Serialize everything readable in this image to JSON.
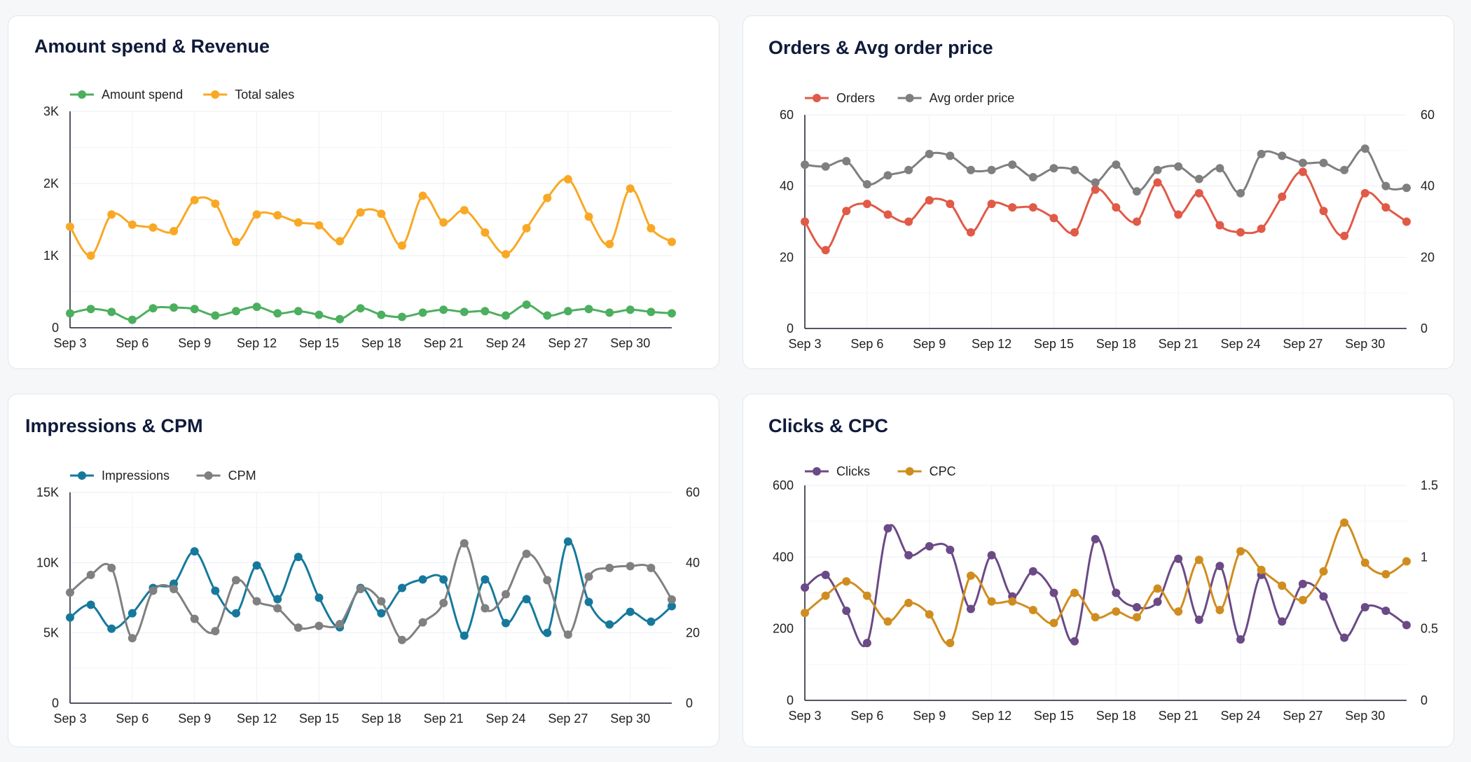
{
  "chart_data": [
    {
      "type": "line",
      "title": "Amount spend & Revenue",
      "categories": [
        "Sep 3",
        "Sep 4",
        "Sep 5",
        "Sep 6",
        "Sep 7",
        "Sep 8",
        "Sep 9",
        "Sep 10",
        "Sep 11",
        "Sep 12",
        "Sep 13",
        "Sep 14",
        "Sep 15",
        "Sep 16",
        "Sep 17",
        "Sep 18",
        "Sep 19",
        "Sep 20",
        "Sep 21",
        "Sep 22",
        "Sep 23",
        "Sep 24",
        "Sep 25",
        "Sep 26",
        "Sep 27",
        "Sep 28",
        "Sep 29",
        "Sep 30",
        "Oct 1",
        "Oct 2"
      ],
      "xtick_labels": [
        "Sep 3",
        "Sep 6",
        "Sep 9",
        "Sep 12",
        "Sep 15",
        "Sep 18",
        "Sep 21",
        "Sep 24",
        "Sep 27",
        "Sep 30"
      ],
      "y_left": {
        "min": 0,
        "max": 3000,
        "ticks": [
          0,
          1000,
          2000,
          3000
        ],
        "tick_labels": [
          "0",
          "1K",
          "2K",
          "3K"
        ]
      },
      "series": [
        {
          "name": "Amount spend",
          "color": "#4caf5f",
          "axis": "left",
          "values": [
            200,
            260,
            220,
            110,
            270,
            280,
            260,
            170,
            230,
            290,
            200,
            230,
            180,
            120,
            270,
            180,
            150,
            210,
            250,
            220,
            230,
            170,
            320,
            170,
            230,
            260,
            210,
            250,
            220,
            200
          ]
        },
        {
          "name": "Total sales",
          "color": "#f9a825",
          "axis": "left",
          "values": [
            1400,
            1000,
            1570,
            1430,
            1390,
            1340,
            1770,
            1720,
            1190,
            1570,
            1560,
            1460,
            1420,
            1200,
            1600,
            1580,
            1140,
            1830,
            1460,
            1630,
            1320,
            1020,
            1380,
            1800,
            2060,
            1540,
            1160,
            1930,
            1380,
            1190
          ]
        }
      ],
      "legend_position": "top-left",
      "grid": true
    },
    {
      "type": "line",
      "title": "Orders & Avg order price",
      "categories": [
        "Sep 3",
        "Sep 4",
        "Sep 5",
        "Sep 6",
        "Sep 7",
        "Sep 8",
        "Sep 9",
        "Sep 10",
        "Sep 11",
        "Sep 12",
        "Sep 13",
        "Sep 14",
        "Sep 15",
        "Sep 16",
        "Sep 17",
        "Sep 18",
        "Sep 19",
        "Sep 20",
        "Sep 21",
        "Sep 22",
        "Sep 23",
        "Sep 24",
        "Sep 25",
        "Sep 26",
        "Sep 27",
        "Sep 28",
        "Sep 29",
        "Sep 30",
        "Oct 1",
        "Oct 2"
      ],
      "xtick_labels": [
        "Sep 3",
        "Sep 6",
        "Sep 9",
        "Sep 12",
        "Sep 15",
        "Sep 18",
        "Sep 21",
        "Sep 24",
        "Sep 27",
        "Sep 30"
      ],
      "y_left": {
        "min": 0,
        "max": 60,
        "ticks": [
          0,
          20,
          40,
          60
        ],
        "tick_labels": [
          "0",
          "20",
          "40",
          "60"
        ]
      },
      "y_right": {
        "min": 0,
        "max": 60,
        "ticks": [
          0,
          20,
          40,
          60
        ],
        "tick_labels": [
          "0",
          "20",
          "40",
          "60"
        ]
      },
      "series": [
        {
          "name": "Orders",
          "color": "#e05a47",
          "axis": "left",
          "values": [
            30,
            22,
            33,
            35,
            32,
            30,
            36,
            35,
            27,
            35,
            34,
            34,
            31,
            27,
            39,
            34,
            30,
            41,
            32,
            38,
            29,
            27,
            28,
            37,
            44,
            33,
            26,
            38,
            34,
            30
          ]
        },
        {
          "name": "Avg order price",
          "color": "#7f7f7f",
          "axis": "right",
          "values": [
            46,
            45.5,
            47,
            40.5,
            43,
            44.5,
            49,
            48.5,
            44.5,
            44.5,
            46,
            42.5,
            45,
            44.5,
            41,
            46,
            38.5,
            44.5,
            45.5,
            42,
            45,
            38,
            49,
            48.5,
            46.5,
            46.5,
            44.5,
            50.5,
            40,
            39.5
          ]
        }
      ],
      "legend_position": "top-left",
      "grid": true
    },
    {
      "type": "line",
      "title": "Impressions & CPM",
      "categories": [
        "Sep 3",
        "Sep 4",
        "Sep 5",
        "Sep 6",
        "Sep 7",
        "Sep 8",
        "Sep 9",
        "Sep 10",
        "Sep 11",
        "Sep 12",
        "Sep 13",
        "Sep 14",
        "Sep 15",
        "Sep 16",
        "Sep 17",
        "Sep 18",
        "Sep 19",
        "Sep 20",
        "Sep 21",
        "Sep 22",
        "Sep 23",
        "Sep 24",
        "Sep 25",
        "Sep 26",
        "Sep 27",
        "Sep 28",
        "Sep 29",
        "Sep 30",
        "Oct 1",
        "Oct 2"
      ],
      "xtick_labels": [
        "Sep 3",
        "Sep 6",
        "Sep 9",
        "Sep 12",
        "Sep 15",
        "Sep 18",
        "Sep 21",
        "Sep 24",
        "Sep 27",
        "Sep 30"
      ],
      "y_left": {
        "min": 0,
        "max": 15000,
        "ticks": [
          0,
          5000,
          10000,
          15000
        ],
        "tick_labels": [
          "0",
          "5K",
          "10K",
          "15K"
        ]
      },
      "y_right": {
        "min": 0,
        "max": 60,
        "ticks": [
          0,
          20,
          40,
          60
        ],
        "tick_labels": [
          "0",
          "20",
          "40",
          "60"
        ]
      },
      "series": [
        {
          "name": "Impressions",
          "color": "#16799c",
          "axis": "left",
          "values": [
            6100,
            7000,
            5300,
            6400,
            8200,
            8500,
            10800,
            8000,
            6400,
            9800,
            7400,
            10400,
            7500,
            5400,
            8200,
            6400,
            8200,
            8800,
            8800,
            4800,
            8800,
            5700,
            7400,
            5000,
            11500,
            7200,
            5600,
            6500,
            5800,
            6900
          ]
        },
        {
          "name": "CPM",
          "color": "#808080",
          "axis": "right",
          "values": [
            31.5,
            36.5,
            38.5,
            18.5,
            32,
            32.5,
            24,
            20.5,
            35,
            29,
            27,
            21.5,
            22,
            22.5,
            32.5,
            29,
            18,
            23,
            28.5,
            45.5,
            27,
            31,
            42.5,
            35,
            19.5,
            36,
            38.5,
            39,
            38.5,
            29.5
          ]
        }
      ],
      "legend_position": "top-left",
      "grid": true
    },
    {
      "type": "line",
      "title": "Clicks & CPC",
      "categories": [
        "Sep 3",
        "Sep 4",
        "Sep 5",
        "Sep 6",
        "Sep 7",
        "Sep 8",
        "Sep 9",
        "Sep 10",
        "Sep 11",
        "Sep 12",
        "Sep 13",
        "Sep 14",
        "Sep 15",
        "Sep 16",
        "Sep 17",
        "Sep 18",
        "Sep 19",
        "Sep 20",
        "Sep 21",
        "Sep 22",
        "Sep 23",
        "Sep 24",
        "Sep 25",
        "Sep 26",
        "Sep 27",
        "Sep 28",
        "Sep 29",
        "Sep 30",
        "Oct 1",
        "Oct 2"
      ],
      "xtick_labels": [
        "Sep 3",
        "Sep 6",
        "Sep 9",
        "Sep 12",
        "Sep 15",
        "Sep 18",
        "Sep 21",
        "Sep 24",
        "Sep 27",
        "Sep 30"
      ],
      "y_left": {
        "min": 0,
        "max": 600,
        "ticks": [
          0,
          200,
          400,
          600
        ],
        "tick_labels": [
          "0",
          "200",
          "400",
          "600"
        ]
      },
      "y_right": {
        "min": 0,
        "max": 1.5,
        "ticks": [
          0,
          0.5,
          1,
          1.5
        ],
        "tick_labels": [
          "0",
          "0.5",
          "1",
          "1.5"
        ]
      },
      "series": [
        {
          "name": "Clicks",
          "color": "#6b4a86",
          "axis": "left",
          "values": [
            315,
            350,
            250,
            160,
            480,
            405,
            430,
            420,
            255,
            405,
            290,
            360,
            300,
            165,
            450,
            300,
            260,
            275,
            395,
            225,
            375,
            170,
            350,
            220,
            325,
            290,
            175,
            260,
            250,
            210
          ]
        },
        {
          "name": "CPC",
          "color": "#d08d1f",
          "axis": "right",
          "values": [
            0.61,
            0.73,
            0.83,
            0.73,
            0.55,
            0.68,
            0.6,
            0.4,
            0.87,
            0.69,
            0.69,
            0.63,
            0.54,
            0.75,
            0.58,
            0.62,
            0.58,
            0.78,
            0.62,
            0.98,
            0.63,
            1.04,
            0.91,
            0.8,
            0.7,
            0.9,
            1.24,
            0.96,
            0.88,
            0.97
          ]
        }
      ],
      "legend_position": "top-left",
      "grid": true
    }
  ]
}
